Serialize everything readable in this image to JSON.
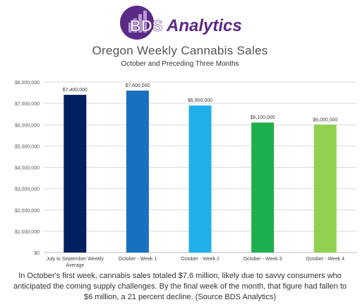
{
  "brand": {
    "name_part1": "BDS",
    "name_part2": "Analytics",
    "logo_color": "#5b2a86",
    "logo_icon": "bar-chart-circle-icon"
  },
  "chart_data": {
    "type": "bar",
    "title": "Oregon Weekly Cannabis Sales",
    "subtitle": "October and Preceding Three Months",
    "categories": [
      "July to September Weekly Average",
      "October - Week 1",
      "October - Week 2",
      "October - Week 3",
      "October - Week 4"
    ],
    "tick_lines": [
      [
        "July to September Weekly",
        "Average"
      ],
      [
        "October - Week 1"
      ],
      [
        "October - Week 2"
      ],
      [
        "October - Week 3"
      ],
      [
        "October - Week 4"
      ]
    ],
    "values": [
      7400000,
      7600000,
      6900000,
      6100000,
      6000000
    ],
    "data_labels": [
      "$7,400,000",
      "$7,600,000",
      "$6,900,000",
      "$6,100,000",
      "$6,000,000"
    ],
    "colors": [
      "#002060",
      "#1870c0",
      "#1fb0ea",
      "#1eb04e",
      "#92d050"
    ],
    "ylim": [
      0,
      8000000
    ],
    "yticks": [
      0,
      1000000,
      2000000,
      3000000,
      4000000,
      5000000,
      6000000,
      7000000,
      8000000
    ],
    "ytick_labels": [
      "$0",
      "$1,000,000",
      "$2,000,000",
      "$3,000,000",
      "$4,000,000",
      "$5,000,000",
      "$6,000,000",
      "$7,000,000",
      "$8,000,000"
    ],
    "grid": true,
    "xlabel": "",
    "ylabel": ""
  },
  "caption": "In October's first week, cannabis sales totaled $7.6 million, likely due to savvy consumers who anticipated the coming supply challenges. By the final week of the month, that figure had fallen to $6 million, a 21 percent decline. (Source BDS Analytics)"
}
